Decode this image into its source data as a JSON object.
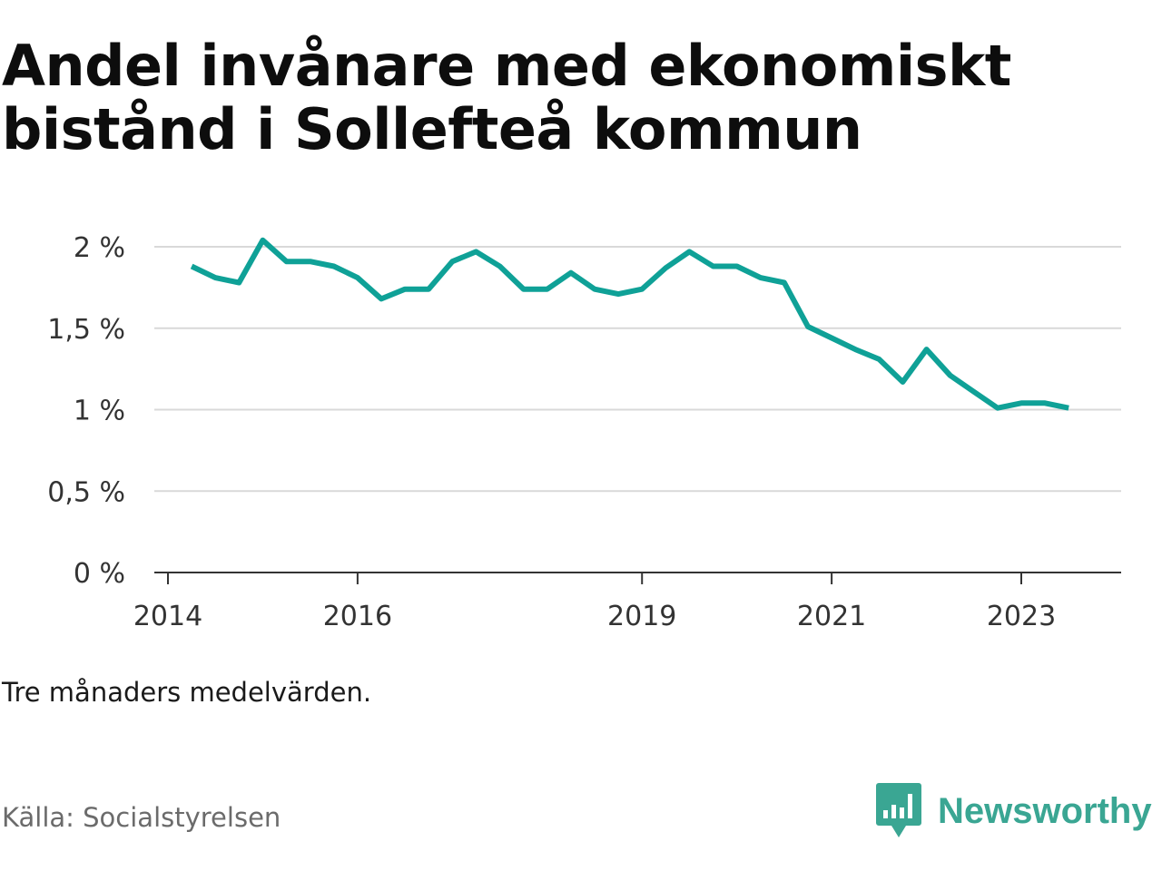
{
  "title": "Andel invånare med ekonomiskt bistånd i Sollefteå kommun",
  "note": "Tre månaders medelvärden.",
  "source": "Källa: Socialstyrelsen",
  "brand": {
    "name": "Newsworthy",
    "icon": "newsworthy-logo-icon",
    "color": "#3aa693"
  },
  "colors": {
    "line": "#0fa197",
    "grid": "#d9d9d9",
    "axis": "#333333"
  },
  "chart_data": {
    "type": "line",
    "title": "Andel invånare med ekonomiskt bistånd i Sollefteå kommun",
    "xlabel": "",
    "ylabel": "",
    "x_range": [
      2014.0,
      2024.25
    ],
    "ylim": [
      0,
      2
    ],
    "y_ticks": [
      0,
      0.5,
      1,
      1.5,
      2
    ],
    "y_tick_labels": [
      "0 %",
      "0,5 %",
      "1 %",
      "1,5 %",
      "2 %"
    ],
    "x_ticks": [
      2014,
      2016,
      2019,
      2021,
      2023
    ],
    "x_tick_labels": [
      "2014",
      "2016",
      "2019",
      "2021",
      "2023"
    ],
    "grid": true,
    "series": [
      {
        "color": "#0fa197",
        "x": [
          2014.25,
          2014.5,
          2014.75,
          2015.0,
          2015.25,
          2015.5,
          2015.75,
          2016.0,
          2016.25,
          2016.5,
          2016.75,
          2017.0,
          2017.25,
          2017.5,
          2017.75,
          2018.0,
          2018.25,
          2018.5,
          2018.75,
          2019.0,
          2019.25,
          2019.5,
          2019.75,
          2020.0,
          2020.25,
          2020.5,
          2020.75,
          2021.0,
          2021.25,
          2021.5,
          2021.75,
          2022.0,
          2022.25,
          2022.5,
          2022.75,
          2023.0,
          2023.25,
          2023.5
        ],
        "y": [
          1.88,
          1.81,
          1.78,
          2.04,
          1.91,
          1.91,
          1.88,
          1.81,
          1.68,
          1.74,
          1.74,
          1.91,
          1.97,
          1.88,
          1.74,
          1.74,
          1.84,
          1.74,
          1.71,
          1.74,
          1.87,
          1.97,
          1.88,
          1.88,
          1.81,
          1.78,
          1.51,
          1.44,
          1.37,
          1.31,
          1.17,
          1.37,
          1.21,
          1.11,
          1.01,
          1.04,
          1.04,
          1.01
        ]
      }
    ]
  }
}
